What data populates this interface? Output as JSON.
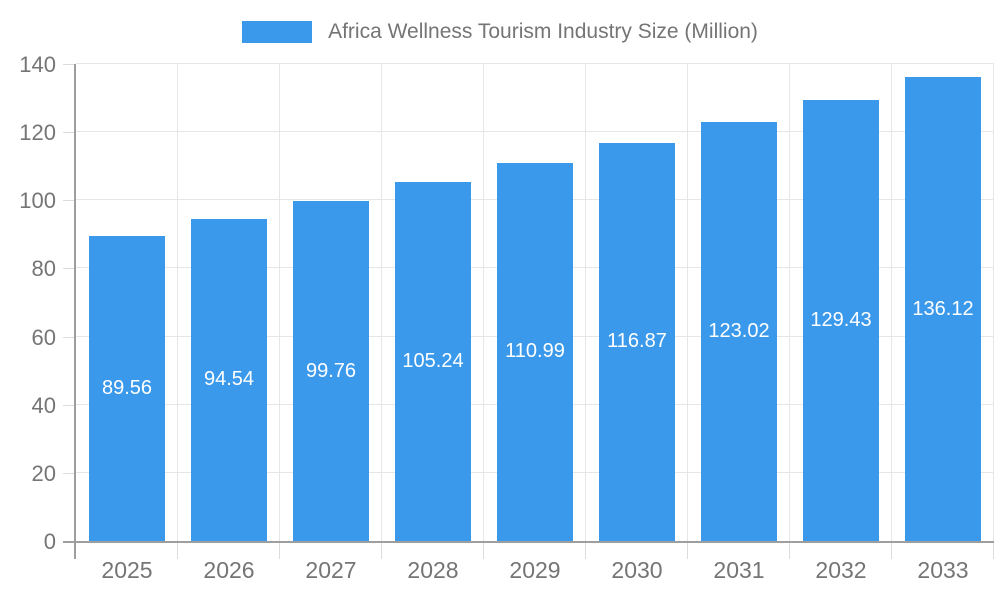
{
  "legend": {
    "label": "Africa Wellness Tourism Industry Size (Million)"
  },
  "colors": {
    "bar": "#3b99eb",
    "axis": "#9e9e9e",
    "grid": "#e6e6e6",
    "tick_label": "#757575",
    "value_label": "#ffffff"
  },
  "chart_data": {
    "type": "bar",
    "title": "Africa Wellness Tourism Industry Size (Million)",
    "categories": [
      "2025",
      "2026",
      "2027",
      "2028",
      "2029",
      "2030",
      "2031",
      "2032",
      "2033"
    ],
    "values": [
      89.56,
      94.54,
      99.76,
      105.24,
      110.99,
      116.87,
      123.02,
      129.43,
      136.12
    ],
    "value_labels": [
      "89.56",
      "94.54",
      "99.76",
      "105.24",
      "110.99",
      "116.87",
      "123.02",
      "129.43",
      "136.12"
    ],
    "xlabel": "",
    "ylabel": "",
    "ylim": [
      0,
      140
    ],
    "yticks": [
      0,
      20,
      40,
      60,
      80,
      100,
      120,
      140
    ],
    "grid": true,
    "legend_position": "top",
    "value_labels_inside_bars": true
  }
}
